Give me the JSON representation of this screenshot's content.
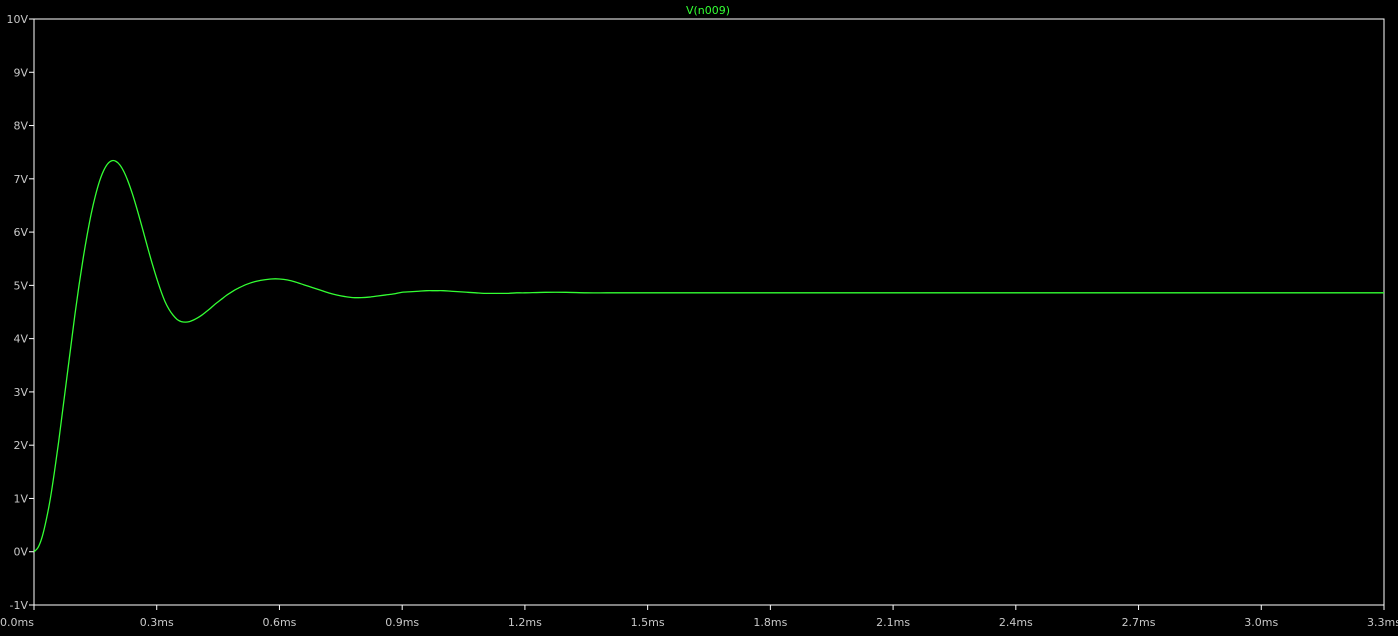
{
  "colors": {
    "background": "#000000",
    "axis": "#ffffff",
    "tick_label": "#c8c8c8",
    "trace": "#33ff33"
  },
  "chart_data": {
    "type": "line",
    "title": "V(n009)",
    "xlabel": "",
    "ylabel": "",
    "xlim": [
      0.0,
      3.3
    ],
    "ylim": [
      -1,
      10
    ],
    "x_unit": "ms",
    "y_unit": "V",
    "x_ticks": [
      0.0,
      0.3,
      0.6,
      0.9,
      1.2,
      1.5,
      1.8,
      2.1,
      2.4,
      2.7,
      3.0,
      3.3
    ],
    "x_tick_labels": [
      "0.0ms",
      "0.3ms",
      "0.6ms",
      "0.9ms",
      "1.2ms",
      "1.5ms",
      "1.8ms",
      "2.1ms",
      "2.4ms",
      "2.7ms",
      "3.0ms",
      "3.3ms"
    ],
    "y_ticks": [
      -1,
      0,
      1,
      2,
      3,
      4,
      5,
      6,
      7,
      8,
      9,
      10
    ],
    "y_tick_labels": [
      "-1V",
      "0V",
      "1V",
      "2V",
      "3V",
      "4V",
      "5V",
      "6V",
      "7V",
      "8V",
      "9V",
      "10V"
    ],
    "grid": false,
    "legend": "none",
    "series": [
      {
        "name": "V(n009)",
        "x": [
          0.0,
          0.01,
          0.02,
          0.03,
          0.04,
          0.05,
          0.06,
          0.07,
          0.08,
          0.09,
          0.1,
          0.11,
          0.12,
          0.13,
          0.14,
          0.15,
          0.16,
          0.17,
          0.18,
          0.19,
          0.2,
          0.21,
          0.22,
          0.23,
          0.24,
          0.25,
          0.26,
          0.27,
          0.28,
          0.29,
          0.3,
          0.31,
          0.32,
          0.33,
          0.34,
          0.35,
          0.36,
          0.37,
          0.38,
          0.39,
          0.4,
          0.41,
          0.42,
          0.43,
          0.44,
          0.45,
          0.46,
          0.47,
          0.48,
          0.49,
          0.5,
          0.52,
          0.54,
          0.56,
          0.58,
          0.6,
          0.62,
          0.64,
          0.66,
          0.68,
          0.7,
          0.72,
          0.74,
          0.76,
          0.78,
          0.8,
          0.82,
          0.84,
          0.86,
          0.88,
          0.9,
          0.92,
          0.94,
          0.96,
          0.98,
          1.0,
          1.02,
          1.04,
          1.06,
          1.08,
          1.1,
          1.12,
          1.14,
          1.16,
          1.18,
          1.2,
          1.25,
          1.3,
          1.35,
          1.4,
          1.45,
          1.5,
          1.55,
          1.6,
          1.65,
          1.7,
          1.75,
          1.8,
          1.9,
          2.0,
          2.1,
          2.2,
          2.3,
          2.4,
          2.5,
          2.6,
          2.7,
          2.8,
          2.9,
          3.0,
          3.1,
          3.2,
          3.3
        ],
        "values": [
          0.0,
          0.08,
          0.28,
          0.6,
          1.0,
          1.5,
          2.05,
          2.65,
          3.25,
          3.85,
          4.45,
          5.0,
          5.5,
          5.95,
          6.35,
          6.68,
          6.95,
          7.15,
          7.28,
          7.34,
          7.33,
          7.26,
          7.13,
          6.95,
          6.73,
          6.48,
          6.21,
          5.93,
          5.65,
          5.38,
          5.13,
          4.9,
          4.7,
          4.55,
          4.44,
          4.36,
          4.32,
          4.31,
          4.32,
          4.35,
          4.39,
          4.44,
          4.5,
          4.56,
          4.63,
          4.69,
          4.75,
          4.81,
          4.86,
          4.91,
          4.95,
          5.02,
          5.07,
          5.1,
          5.12,
          5.12,
          5.1,
          5.06,
          5.01,
          4.96,
          4.91,
          4.86,
          4.82,
          4.79,
          4.77,
          4.77,
          4.78,
          4.8,
          4.82,
          4.84,
          4.87,
          4.88,
          4.89,
          4.9,
          4.9,
          4.9,
          4.89,
          4.88,
          4.87,
          4.86,
          4.85,
          4.85,
          4.85,
          4.85,
          4.86,
          4.86,
          4.87,
          4.87,
          4.86,
          4.86,
          4.86,
          4.86,
          4.86,
          4.86,
          4.86,
          4.86,
          4.86,
          4.86,
          4.86,
          4.86,
          4.86,
          4.86,
          4.86,
          4.86,
          4.86,
          4.86,
          4.86,
          4.86,
          4.86,
          4.86,
          4.86,
          4.86,
          4.86
        ]
      }
    ]
  }
}
